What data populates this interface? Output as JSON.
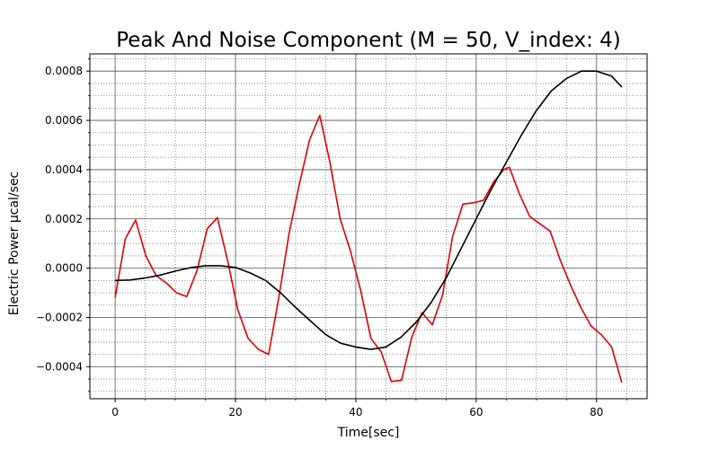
{
  "chart_data": {
    "type": "line",
    "title": "Peak And Noise Component (M = 50, V_index: 4)",
    "xlabel": "Time[sec]",
    "ylabel": "Electric Power µcal/sec",
    "xlim": [
      -4.2,
      88.4
    ],
    "ylim": [
      -0.00053,
      0.00087
    ],
    "xticks": [
      0,
      20,
      40,
      60,
      80
    ],
    "xtick_labels": [
      "0",
      "20",
      "40",
      "60",
      "80"
    ],
    "yticks": [
      -0.0004,
      -0.0002,
      0.0,
      0.0002,
      0.0004,
      0.0006,
      0.0008
    ],
    "ytick_labels": [
      "−0.0004",
      "−0.0002",
      "0.0000",
      "0.0002",
      "0.0004",
      "0.0006",
      "0.0008"
    ],
    "grid": true,
    "minor_grid": true,
    "legend": false,
    "series": [
      {
        "color": "#e00000",
        "x": [
          0,
          1.7,
          3.4,
          5.1,
          6.8,
          8.5,
          10.2,
          11.9,
          13.6,
          15.3,
          17,
          18.7,
          20.4,
          22.1,
          23.8,
          25.5,
          27.2,
          28.9,
          30.6,
          32.3,
          34,
          35.7,
          37.4,
          39.1,
          40.8,
          42.5,
          44.2,
          45.9,
          47.6,
          49.3,
          51,
          52.7,
          54.4,
          56.1,
          57.8,
          59.5,
          61.2,
          62.9,
          64.6,
          65.5,
          67.2,
          68.9,
          70.6,
          72.3,
          74,
          75.7,
          77.4,
          79.1,
          80.8,
          82.5,
          84.2
        ],
        "y": [
          -0.00012,
          0.00012,
          0.000195,
          5e-05,
          -3e-05,
          -6e-05,
          -0.0001,
          -0.000115,
          -1e-05,
          0.00016,
          0.000205,
          3e-05,
          -0.00017,
          -0.000285,
          -0.00033,
          -0.00035,
          -0.00012,
          0.00014,
          0.00034,
          0.00052,
          0.00062,
          0.00043,
          0.0002,
          7e-05,
          -9e-05,
          -0.000285,
          -0.00034,
          -0.00046,
          -0.000455,
          -0.00028,
          -0.00018,
          -0.00023,
          -0.00011,
          0.00013,
          0.00026,
          0.000265,
          0.000275,
          0.00035,
          0.0004,
          0.00041,
          0.0003,
          0.00021,
          0.00018,
          0.00015,
          3e-05,
          -7e-05,
          -0.00016,
          -0.000235,
          -0.00027,
          -0.00032,
          -0.000465
        ]
      },
      {
        "color": "#000000",
        "x": [
          0,
          2.5,
          5,
          7.5,
          10,
          12.5,
          15,
          17.5,
          20,
          22.5,
          25,
          27.5,
          30,
          32.5,
          35,
          37.5,
          40,
          42.5,
          45,
          47.5,
          50,
          52.5,
          55,
          57.5,
          60,
          62.5,
          65,
          67.5,
          70,
          72.5,
          75,
          77.5,
          80,
          82.5,
          84.2
        ],
        "y": [
          -5e-05,
          -4.8e-05,
          -4e-05,
          -2.8e-05,
          -1.2e-05,
          2e-06,
          1e-05,
          1e-05,
          3e-06,
          -2e-05,
          -5e-05,
          -0.0001,
          -0.00016,
          -0.000215,
          -0.00027,
          -0.000305,
          -0.00032,
          -0.00033,
          -0.00032,
          -0.00028,
          -0.00022,
          -0.00014,
          -4e-05,
          8e-05,
          0.0002,
          0.00032,
          0.00043,
          0.00054,
          0.00064,
          0.00072,
          0.00077,
          0.0008,
          0.0008,
          0.00078,
          0.000735
        ]
      }
    ]
  }
}
